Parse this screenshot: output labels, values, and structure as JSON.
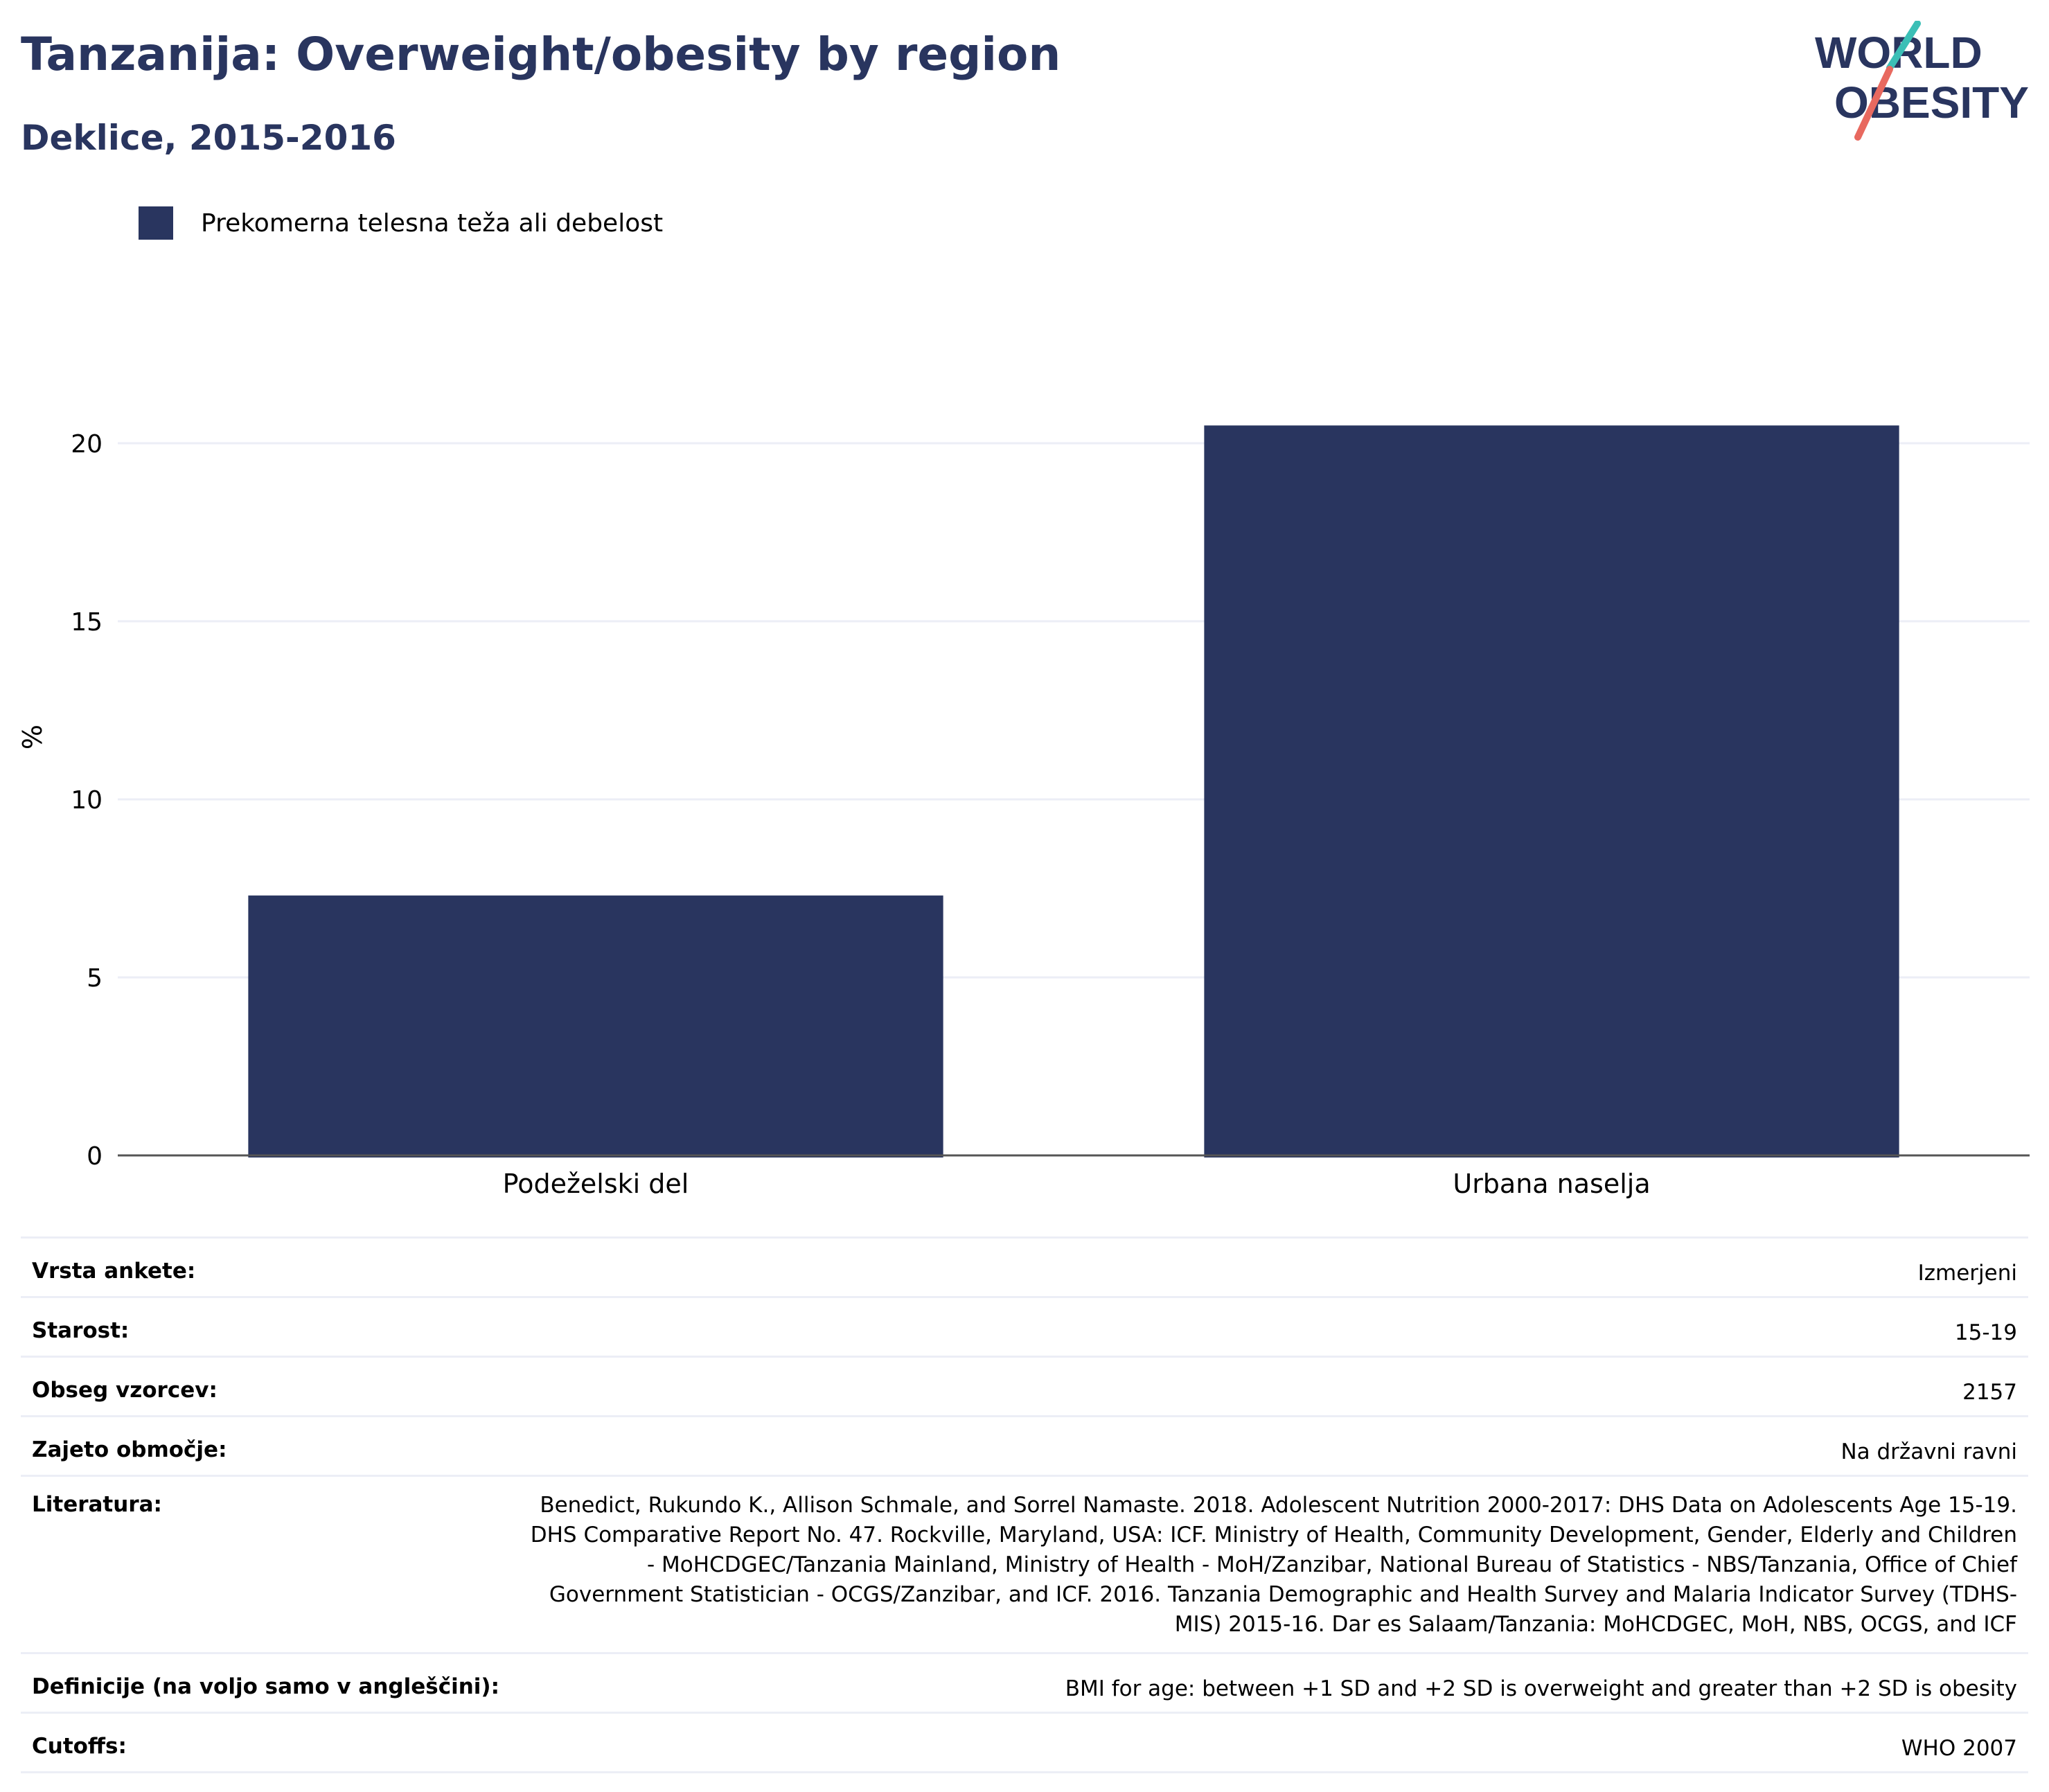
{
  "header": {
    "title": "Tanzanija: Overweight/obesity by region",
    "subtitle": "Deklice, 2015-2016"
  },
  "logo": {
    "line1": "WORLD",
    "line2": "OBESITY",
    "colors": {
      "text": "#29355f",
      "slash_top": "#3bbfb6",
      "slash_bottom": "#e8695f"
    }
  },
  "legend": {
    "label": "Prekomerna telesna teža ali debelost",
    "color": "#29355f"
  },
  "chart_data": {
    "type": "bar",
    "categories": [
      "Podeželski del",
      "Urbana naselja"
    ],
    "series": [
      {
        "name": "Prekomerna telesna teža ali debelost",
        "values": [
          7.3,
          20.5
        ],
        "color": "#29355f"
      }
    ],
    "ylabel": "%",
    "xlabel": "",
    "ylim": [
      0,
      23.5
    ],
    "yticks": [
      0,
      5,
      10,
      15,
      20
    ],
    "grid": true,
    "legend_position": "top-left"
  },
  "info": [
    {
      "label": "Vrsta ankete:",
      "value": "Izmerjeni"
    },
    {
      "label": "Starost:",
      "value": "15-19"
    },
    {
      "label": "Obseg vzorcev:",
      "value": "2157"
    },
    {
      "label": "Zajeto območje:",
      "value": "Na državni ravni"
    },
    {
      "label": "Literatura:",
      "value": "Benedict, Rukundo K., Allison Schmale, and Sorrel Namaste. 2018. Adolescent Nutrition 2000-2017: DHS Data on Adolescents Age 15-19. DHS Comparative Report No. 47. Rockville, Maryland, USA: ICF. Ministry of Health, Community Development, Gender, Elderly and Children - MoHCDGEC/Tanzania Mainland, Ministry of Health - MoH/Zanzibar, National Bureau of Statistics - NBS/Tanzania, Office of Chief Government Statistician - OCGS/Zanzibar, and ICF. 2016. Tanzania Demographic and Health Survey and Malaria Indicator Survey (TDHS-MIS) 2015-16. Dar es Salaam/Tanzania: MoHCDGEC, MoH, NBS, OCGS, and ICF"
    },
    {
      "label": "Definicije (na voljo samo v angleščini):",
      "value": "BMI for age: between +1 SD and +2 SD is overweight and greater than +2 SD is obesity"
    },
    {
      "label": "Cutoffs:",
      "value": "WHO 2007"
    }
  ]
}
